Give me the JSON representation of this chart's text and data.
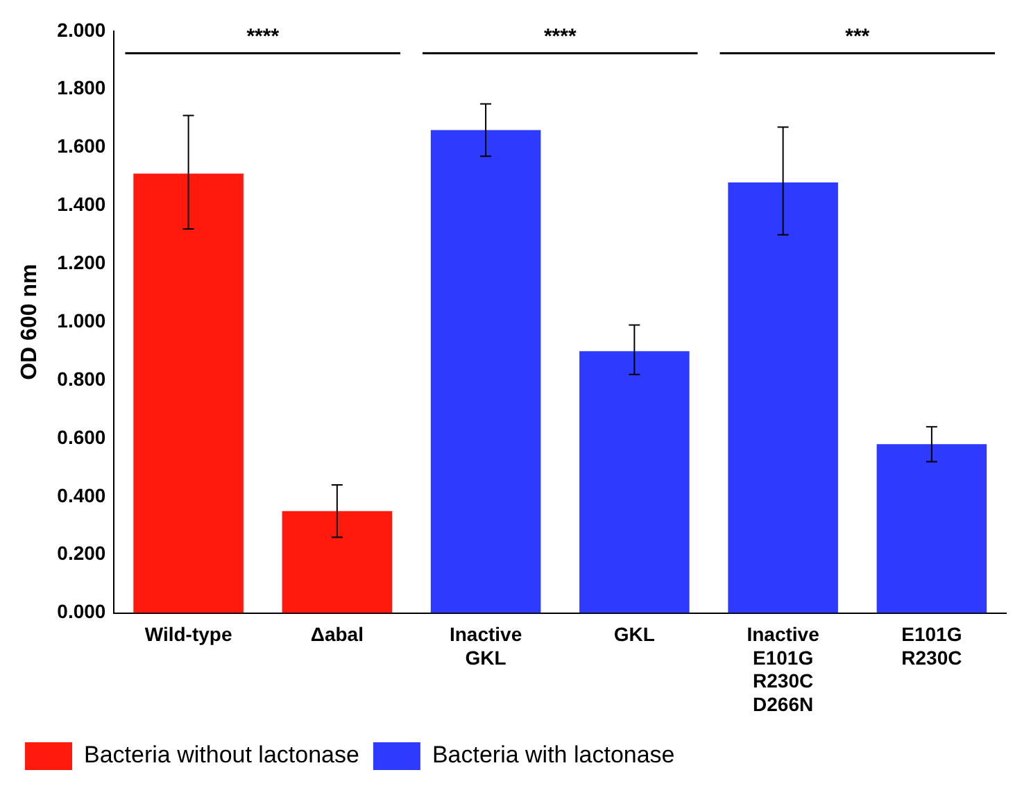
{
  "chart_data": {
    "type": "bar",
    "ylabel": "OD 600 nm",
    "categories": [
      "Wild-type",
      "Δabal",
      "Inactive GKL",
      "GKL",
      "Inactive E101G R230C D266N",
      "E101G R230C"
    ],
    "series": [
      {
        "name": "Bacteria without lactonase",
        "color": "#ff1a0d",
        "values": [
          1.51,
          0.35,
          null,
          null,
          null,
          null
        ],
        "errors": [
          [
            1.32,
            1.71
          ],
          [
            0.26,
            0.44
          ],
          null,
          null,
          null,
          null
        ]
      },
      {
        "name": "Bacteria with lactonase",
        "color": "#2e3bff",
        "values": [
          null,
          null,
          1.66,
          0.9,
          1.48,
          0.58
        ],
        "errors": [
          null,
          null,
          [
            1.57,
            1.75
          ],
          [
            0.82,
            0.99
          ],
          [
            1.3,
            1.67
          ],
          [
            0.52,
            0.64
          ]
        ]
      }
    ],
    "ylim": [
      0,
      2
    ],
    "yticks": [
      {
        "value": 0,
        "label": "0.000"
      },
      {
        "value": 0.2,
        "label": "0.200"
      },
      {
        "value": 0.4,
        "label": "0.400"
      },
      {
        "value": 0.6,
        "label": "0.600"
      },
      {
        "value": 0.8,
        "label": "0.800"
      },
      {
        "value": 1,
        "label": "1.000"
      },
      {
        "value": 1.2,
        "label": "1.200"
      },
      {
        "value": 1.4,
        "label": "1.400"
      },
      {
        "value": 1.6,
        "label": "1.600"
      },
      {
        "value": 1.8,
        "label": "1.800"
      },
      {
        "value": 2,
        "label": "2.000"
      }
    ],
    "annotations": [
      "****",
      "****",
      "***"
    ],
    "grid": false,
    "legend": "bottom left"
  }
}
